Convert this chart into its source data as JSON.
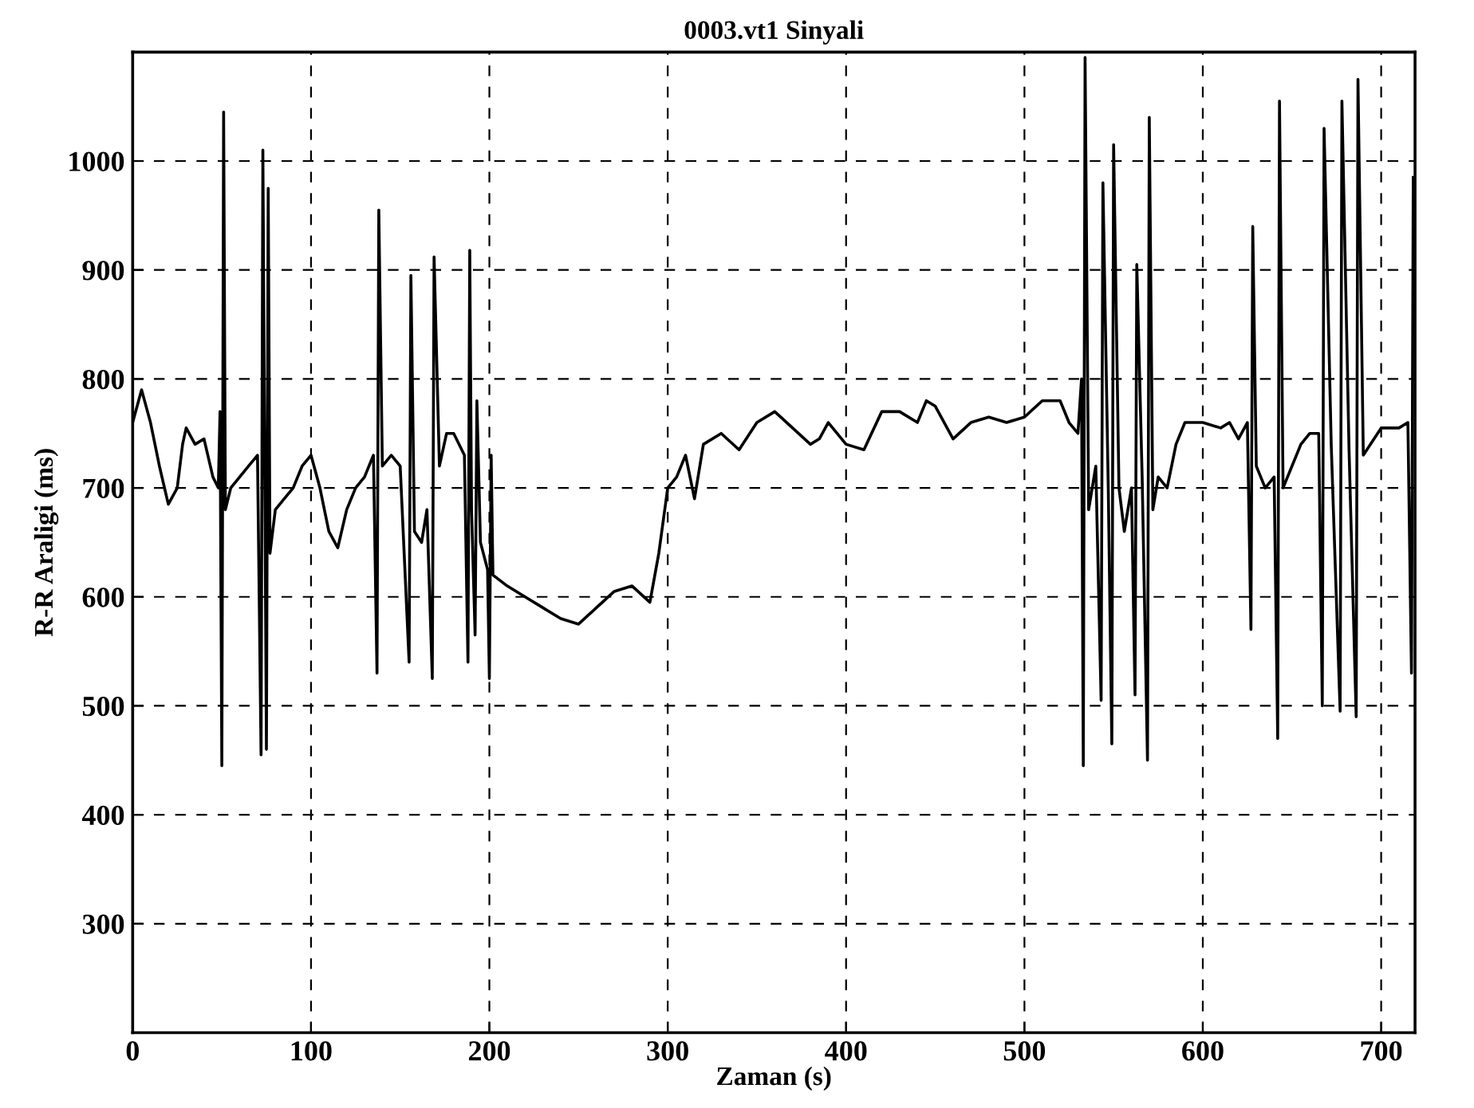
{
  "chart_data": {
    "type": "line",
    "title": "0003.vt1 Sinyali",
    "xlabel": "Zaman (s)",
    "ylabel": "R-R Araligi (ms)",
    "x": [
      0,
      5,
      10,
      15,
      20,
      25,
      28,
      30,
      35,
      40,
      45,
      48,
      49,
      50,
      51,
      52,
      55,
      60,
      65,
      70,
      72,
      73,
      75,
      76,
      77,
      80,
      85,
      90,
      95,
      100,
      105,
      110,
      115,
      120,
      125,
      130,
      135,
      137,
      138,
      140,
      145,
      150,
      155,
      156,
      158,
      162,
      165,
      168,
      169,
      172,
      176,
      180,
      186,
      188,
      189,
      190,
      192,
      193,
      195,
      199,
      200,
      201,
      202,
      210,
      220,
      230,
      240,
      250,
      260,
      270,
      280,
      290,
      295,
      300,
      305,
      310,
      315,
      320,
      330,
      340,
      350,
      360,
      370,
      380,
      385,
      390,
      400,
      410,
      420,
      430,
      440,
      445,
      450,
      460,
      470,
      480,
      490,
      500,
      510,
      520,
      525,
      530,
      532,
      533,
      534,
      536,
      540,
      543,
      544,
      547,
      549,
      550,
      553,
      556,
      560,
      562,
      563,
      566,
      569,
      570,
      572,
      575,
      580,
      585,
      590,
      600,
      610,
      615,
      620,
      625,
      627,
      628,
      630,
      635,
      640,
      642,
      643,
      645,
      650,
      655,
      660,
      665,
      667,
      668,
      672,
      677,
      678,
      682,
      686,
      687,
      690,
      700,
      710,
      715,
      717,
      718
    ],
    "series": [
      {
        "color": "#000000",
        "values": [
          760,
          790,
          760,
          720,
          685,
          700,
          740,
          755,
          740,
          745,
          710,
          700,
          770,
          445,
          1045,
          680,
          700,
          710,
          720,
          730,
          455,
          1010,
          460,
          975,
          640,
          680,
          690,
          700,
          720,
          730,
          700,
          660,
          645,
          680,
          700,
          710,
          730,
          530,
          955,
          720,
          730,
          720,
          540,
          895,
          660,
          650,
          680,
          525,
          912,
          720,
          750,
          750,
          730,
          540,
          918,
          680,
          565,
          780,
          650,
          625,
          525,
          730,
          620,
          610,
          600,
          590,
          580,
          575,
          590,
          605,
          610,
          595,
          640,
          700,
          710,
          730,
          690,
          740,
          750,
          735,
          760,
          770,
          755,
          740,
          745,
          760,
          740,
          735,
          770,
          770,
          760,
          780,
          775,
          745,
          760,
          765,
          760,
          765,
          780,
          780,
          760,
          750,
          800,
          445,
          1095,
          680,
          720,
          505,
          980,
          700,
          465,
          1015,
          700,
          660,
          700,
          510,
          905,
          710,
          450,
          1040,
          680,
          710,
          700,
          740,
          760,
          760,
          755,
          760,
          745,
          760,
          570,
          940,
          720,
          700,
          710,
          470,
          1055,
          700,
          720,
          740,
          750,
          750,
          500,
          1030,
          740,
          495,
          1055,
          735,
          490,
          1075,
          730,
          755,
          755,
          760,
          530,
          985
        ]
      }
    ],
    "xlim": [
      0,
      719
    ],
    "ylim": [
      200,
      1100
    ],
    "xticks": [
      0,
      100,
      200,
      300,
      400,
      500,
      600,
      700
    ],
    "yticks": [
      300,
      400,
      500,
      600,
      700,
      800,
      900,
      1000
    ],
    "grid": true,
    "line_style": "solid",
    "marker": "none"
  }
}
